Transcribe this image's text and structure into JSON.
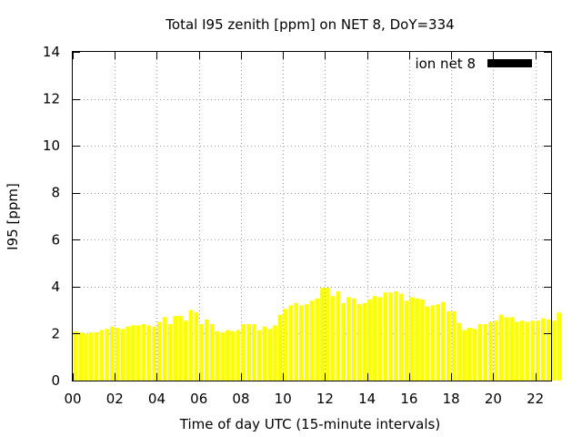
{
  "chart_data": {
    "type": "bar",
    "title": "Total I95 zenith [ppm] on NET 8, DoY=334",
    "xlabel": "Time of day UTC (15-minute intervals)",
    "ylabel": "I95 [ppm]",
    "ylim": [
      0,
      14
    ],
    "yticks": [
      "0",
      "2",
      "4",
      "6",
      "8",
      "10",
      "12",
      "14"
    ],
    "xlim": [
      0,
      22.75
    ],
    "xticks": [
      "00",
      "02",
      "04",
      "06",
      "08",
      "10",
      "12",
      "14",
      "16",
      "18",
      "20",
      "22"
    ],
    "grid": true,
    "legend_position": "top-right",
    "series": [
      {
        "name": "ion net 8",
        "bar_color": "#ffff00",
        "legend_color": "#000000",
        "values": [
          2.1,
          2.05,
          2.0,
          2.05,
          2.05,
          2.15,
          2.2,
          2.3,
          2.25,
          2.2,
          2.3,
          2.35,
          2.35,
          2.4,
          2.35,
          2.3,
          2.5,
          2.7,
          2.4,
          2.75,
          2.75,
          2.55,
          3.0,
          2.9,
          2.4,
          2.6,
          2.4,
          2.1,
          2.05,
          2.15,
          2.1,
          2.15,
          2.4,
          2.4,
          2.4,
          2.15,
          2.3,
          2.2,
          2.35,
          2.8,
          3.05,
          3.2,
          3.3,
          3.2,
          3.25,
          3.4,
          3.5,
          3.95,
          3.95,
          3.6,
          3.8,
          3.3,
          3.55,
          3.5,
          3.25,
          3.3,
          3.45,
          3.6,
          3.55,
          3.75,
          3.75,
          3.8,
          3.7,
          3.4,
          3.55,
          3.5,
          3.45,
          3.15,
          3.2,
          3.25,
          3.35,
          2.95,
          2.95,
          2.45,
          2.15,
          2.25,
          2.2,
          2.4,
          2.4,
          2.5,
          2.55,
          2.8,
          2.7,
          2.7,
          2.5,
          2.55,
          2.5,
          2.55,
          2.55,
          2.65,
          2.6,
          2.55,
          2.9
        ]
      }
    ]
  }
}
